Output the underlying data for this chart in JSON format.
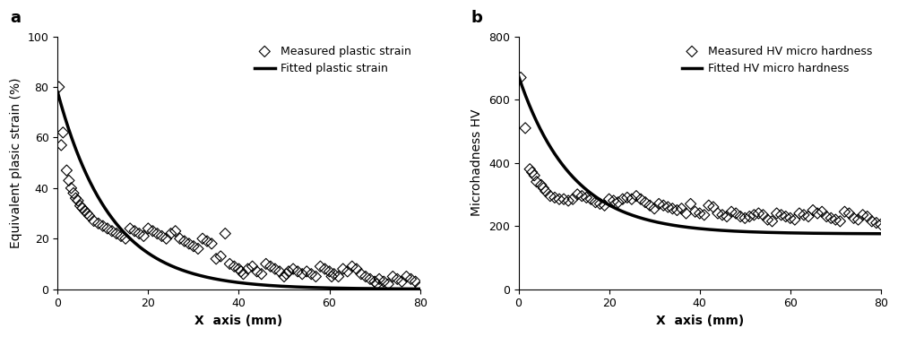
{
  "panel_a": {
    "label": "a",
    "ylabel": "Equivalent plasic strain (%)",
    "xlabel": "X  axis (mm)",
    "ylim": [
      0,
      100
    ],
    "xlim": [
      0,
      80
    ],
    "yticks": [
      0,
      20,
      40,
      60,
      80,
      100
    ],
    "xticks": [
      0,
      20,
      40,
      60,
      80
    ],
    "scatter_x": [
      0.3,
      0.8,
      1.2,
      2.0,
      2.5,
      3.0,
      3.5,
      4.0,
      4.5,
      5.0,
      5.5,
      6.0,
      6.5,
      7.0,
      8.0,
      9.0,
      10.0,
      11.0,
      12.0,
      13.0,
      14.0,
      15.0,
      16.0,
      17.0,
      18.0,
      19.0,
      20.0,
      21.0,
      22.0,
      23.0,
      24.0,
      25.0,
      26.0,
      27.0,
      28.0,
      29.0,
      30.0,
      31.0,
      32.0,
      33.0,
      34.0,
      35.0,
      36.0,
      37.0,
      38.0,
      39.0,
      40.0,
      40.5,
      41.0,
      42.0,
      43.0,
      44.0,
      45.0,
      46.0,
      47.0,
      48.0,
      49.0,
      50.0,
      50.5,
      51.0,
      52.0,
      53.0,
      54.0,
      55.0,
      56.0,
      57.0,
      58.0,
      59.0,
      60.0,
      60.5,
      61.0,
      62.0,
      63.0,
      64.0,
      65.0,
      66.0,
      67.0,
      68.0,
      69.0,
      70.0,
      70.5,
      71.0,
      72.0,
      73.0,
      74.0,
      75.0,
      76.0,
      77.0,
      78.0,
      79.0,
      80.0
    ],
    "scatter_y": [
      80,
      57,
      62,
      47,
      43,
      40,
      38,
      36,
      35,
      33,
      32,
      31,
      30,
      29,
      27,
      26,
      25,
      24,
      23,
      22,
      21,
      20,
      24,
      23,
      22,
      21,
      24,
      23,
      22,
      21,
      20,
      22,
      23,
      20,
      19,
      18,
      17,
      16,
      20,
      19,
      18,
      12,
      13,
      22,
      10,
      9,
      8,
      7,
      6,
      8,
      9,
      7,
      6,
      10,
      9,
      8,
      7,
      5,
      6,
      7,
      8,
      7,
      6,
      7,
      6,
      5,
      9,
      8,
      7,
      5,
      6,
      5,
      8,
      7,
      9,
      8,
      6,
      5,
      4,
      3,
      2,
      4,
      3,
      2,
      5,
      4,
      3,
      5,
      4,
      3,
      1
    ],
    "fit_a": 78.0,
    "fit_b": 0.085,
    "legend_scatter": "Measured plastic strain",
    "legend_fit": "Fitted plastic strain"
  },
  "panel_b": {
    "label": "b",
    "ylabel": "Microhadness HV",
    "xlabel": "X  axis (mm)",
    "ylim": [
      0,
      800
    ],
    "xlim": [
      0,
      80
    ],
    "yticks": [
      0,
      200,
      400,
      600,
      800
    ],
    "xticks": [
      0,
      20,
      40,
      60,
      80
    ],
    "scatter_x": [
      0.5,
      1.5,
      2.5,
      3.0,
      3.5,
      4.0,
      5.0,
      5.5,
      6.0,
      7.0,
      8.0,
      9.0,
      10.0,
      11.0,
      12.0,
      13.0,
      14.0,
      15.0,
      16.0,
      17.0,
      18.0,
      19.0,
      20.0,
      21.0,
      22.0,
      23.0,
      24.0,
      25.0,
      26.0,
      27.0,
      28.0,
      29.0,
      30.0,
      31.0,
      32.0,
      33.0,
      34.0,
      35.0,
      36.0,
      37.0,
      38.0,
      39.0,
      40.0,
      41.0,
      42.0,
      43.0,
      44.0,
      45.0,
      46.0,
      47.0,
      48.0,
      49.0,
      50.0,
      51.0,
      52.0,
      53.0,
      54.0,
      55.0,
      56.0,
      57.0,
      58.0,
      59.0,
      60.0,
      61.0,
      62.0,
      63.0,
      64.0,
      65.0,
      66.0,
      67.0,
      68.0,
      69.0,
      70.0,
      71.0,
      72.0,
      73.0,
      74.0,
      75.0,
      76.0,
      77.0,
      78.0,
      79.0,
      80.0
    ],
    "scatter_y": [
      670,
      510,
      380,
      370,
      360,
      340,
      330,
      320,
      310,
      295,
      290,
      285,
      285,
      280,
      285,
      300,
      295,
      290,
      285,
      275,
      270,
      265,
      285,
      280,
      275,
      285,
      290,
      285,
      295,
      285,
      275,
      265,
      255,
      270,
      265,
      260,
      255,
      250,
      255,
      240,
      270,
      245,
      240,
      235,
      265,
      260,
      240,
      235,
      230,
      245,
      240,
      230,
      225,
      230,
      235,
      240,
      235,
      220,
      215,
      240,
      235,
      230,
      225,
      220,
      240,
      235,
      230,
      250,
      240,
      245,
      230,
      225,
      220,
      215,
      245,
      240,
      225,
      220,
      235,
      230,
      215,
      210,
      205
    ],
    "fit_a": 500.0,
    "fit_b": 0.085,
    "fit_c": 175.0,
    "legend_scatter": "Measured HV micro hardness",
    "legend_fit": "Fitted HV micro hardness"
  },
  "figure_bg": "#ffffff",
  "axes_bg": "#ffffff",
  "scatter_color": "#000000",
  "fit_color": "#000000",
  "fit_linewidth": 2.5,
  "scatter_size": 38,
  "scatter_marker": "D",
  "font_size_label": 10,
  "font_size_tick": 9,
  "font_size_legend": 9,
  "font_size_panel_label": 13
}
